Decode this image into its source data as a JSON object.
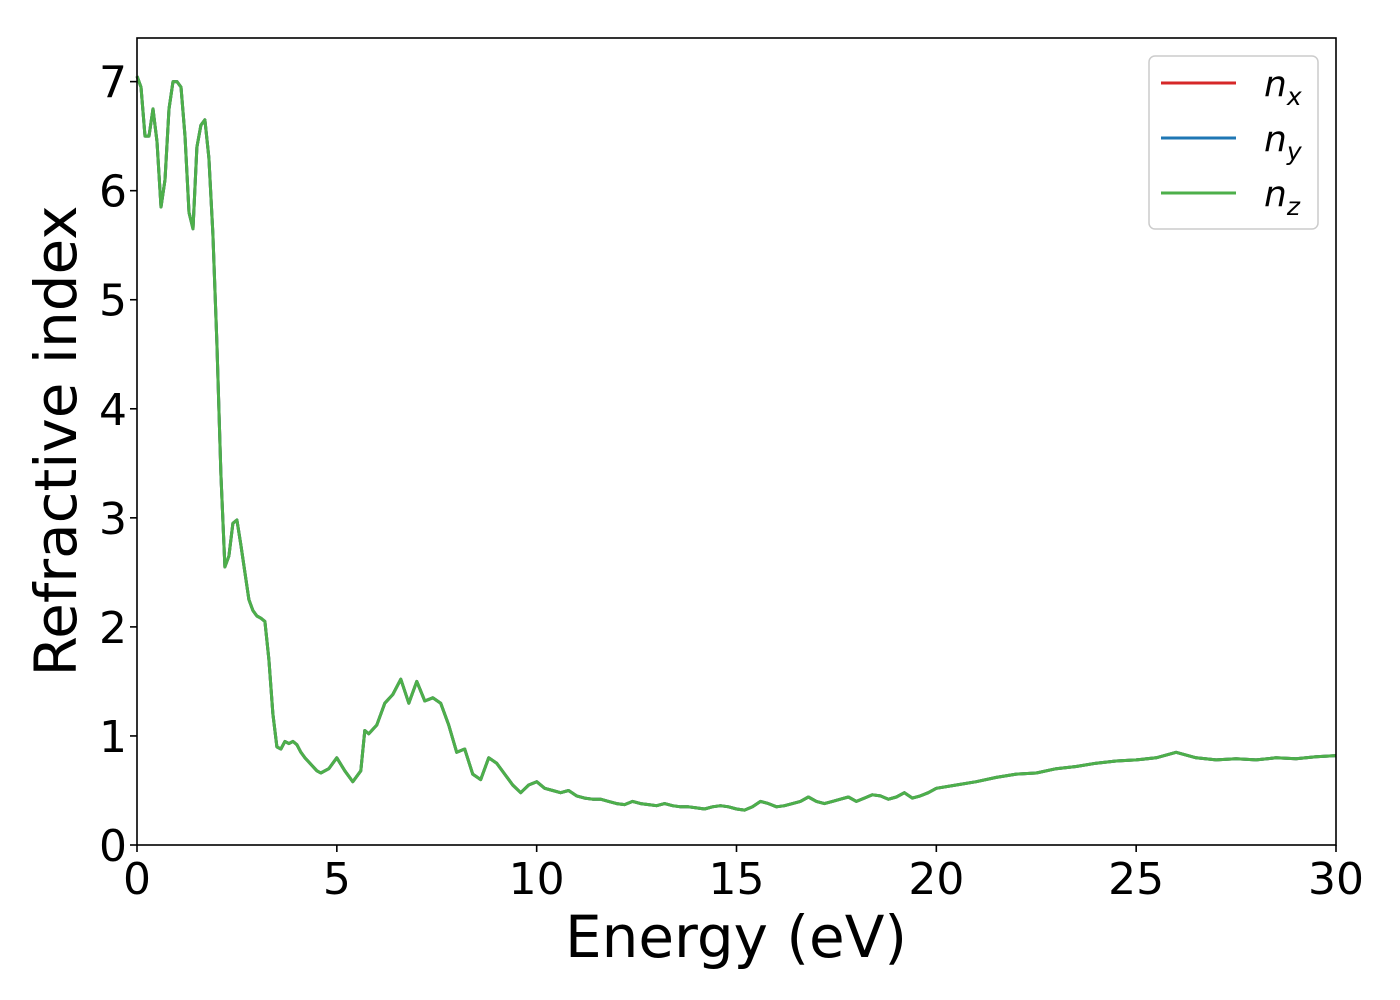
{
  "chart_data": {
    "type": "line",
    "xlabel": "Energy (eV)",
    "ylabel": "Refractive index",
    "xlim": [
      0,
      30
    ],
    "ylim": [
      0,
      7.4
    ],
    "xticks": [
      "0",
      "5",
      "10",
      "15",
      "20",
      "25",
      "30"
    ],
    "yticks": [
      "0",
      "1",
      "2",
      "3",
      "4",
      "5",
      "6",
      "7"
    ],
    "grid": false,
    "legend_position": "top-right",
    "colors": {
      "n_x": "#d62728",
      "n_y": "#1f77b4",
      "n_z": "#4daf4a"
    },
    "series": [
      {
        "key": "n_x",
        "name_base": "n",
        "name_sub": "x",
        "color": "#d62728"
      },
      {
        "key": "n_y",
        "name_base": "n",
        "name_sub": "y",
        "color": "#1f77b4"
      },
      {
        "key": "n_z",
        "name_base": "n",
        "name_sub": "z",
        "color": "#4daf4a"
      }
    ],
    "x": [
      0,
      0.1,
      0.2,
      0.3,
      0.4,
      0.5,
      0.6,
      0.7,
      0.8,
      0.9,
      1.0,
      1.1,
      1.2,
      1.3,
      1.4,
      1.5,
      1.6,
      1.7,
      1.8,
      1.9,
      2.0,
      2.1,
      2.2,
      2.3,
      2.4,
      2.5,
      2.6,
      2.7,
      2.8,
      2.9,
      3.0,
      3.1,
      3.2,
      3.3,
      3.4,
      3.5,
      3.6,
      3.7,
      3.8,
      3.9,
      4.0,
      4.1,
      4.2,
      4.3,
      4.4,
      4.5,
      4.6,
      4.8,
      5.0,
      5.2,
      5.4,
      5.6,
      5.7,
      5.8,
      6.0,
      6.2,
      6.4,
      6.6,
      6.8,
      7.0,
      7.2,
      7.4,
      7.6,
      7.8,
      8.0,
      8.2,
      8.4,
      8.6,
      8.8,
      9.0,
      9.2,
      9.4,
      9.6,
      9.8,
      10.0,
      10.2,
      10.4,
      10.6,
      10.8,
      11.0,
      11.2,
      11.4,
      11.6,
      11.8,
      12.0,
      12.2,
      12.4,
      12.6,
      12.8,
      13.0,
      13.2,
      13.4,
      13.6,
      13.8,
      14.0,
      14.2,
      14.4,
      14.6,
      14.8,
      15.0,
      15.2,
      15.4,
      15.6,
      15.8,
      16.0,
      16.2,
      16.4,
      16.6,
      16.8,
      17.0,
      17.2,
      17.4,
      17.6,
      17.8,
      18.0,
      18.2,
      18.4,
      18.6,
      18.8,
      19.0,
      19.2,
      19.4,
      19.6,
      19.8,
      20.0,
      20.5,
      21.0,
      21.5,
      22.0,
      22.5,
      23.0,
      23.5,
      24.0,
      24.5,
      25.0,
      25.5,
      26.0,
      26.5,
      27.0,
      27.5,
      28.0,
      28.5,
      29.0,
      29.5,
      30.0
    ],
    "y": [
      7.05,
      6.95,
      6.5,
      6.5,
      6.75,
      6.45,
      5.85,
      6.1,
      6.75,
      7.0,
      7.0,
      6.95,
      6.5,
      5.8,
      5.65,
      6.4,
      6.6,
      6.65,
      6.3,
      5.6,
      4.6,
      3.4,
      2.55,
      2.65,
      2.95,
      2.98,
      2.75,
      2.5,
      2.25,
      2.15,
      2.1,
      2.08,
      2.05,
      1.7,
      1.2,
      0.9,
      0.88,
      0.95,
      0.93,
      0.95,
      0.92,
      0.85,
      0.8,
      0.76,
      0.72,
      0.68,
      0.66,
      0.7,
      0.8,
      0.68,
      0.58,
      0.68,
      1.05,
      1.02,
      1.1,
      1.3,
      1.38,
      1.52,
      1.3,
      1.5,
      1.32,
      1.35,
      1.3,
      1.1,
      0.85,
      0.88,
      0.65,
      0.6,
      0.8,
      0.75,
      0.65,
      0.55,
      0.48,
      0.55,
      0.58,
      0.52,
      0.5,
      0.48,
      0.5,
      0.45,
      0.43,
      0.42,
      0.42,
      0.4,
      0.38,
      0.37,
      0.4,
      0.38,
      0.37,
      0.36,
      0.38,
      0.36,
      0.35,
      0.35,
      0.34,
      0.33,
      0.35,
      0.36,
      0.35,
      0.33,
      0.32,
      0.35,
      0.4,
      0.38,
      0.35,
      0.36,
      0.38,
      0.4,
      0.44,
      0.4,
      0.38,
      0.4,
      0.42,
      0.44,
      0.4,
      0.43,
      0.46,
      0.45,
      0.42,
      0.44,
      0.48,
      0.43,
      0.45,
      0.48,
      0.52,
      0.55,
      0.58,
      0.62,
      0.65,
      0.66,
      0.7,
      0.72,
      0.75,
      0.77,
      0.78,
      0.8,
      0.85,
      0.8,
      0.78,
      0.79,
      0.78,
      0.8,
      0.79,
      0.81,
      0.82
    ]
  }
}
